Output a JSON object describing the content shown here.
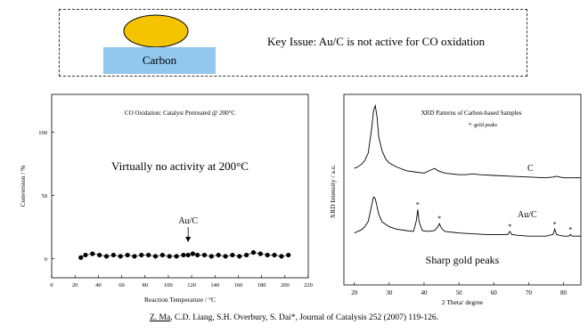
{
  "header_box": {
    "carbon_label": "Carbon",
    "key_issue": "Key Issue: Au/C is not active for CO oxidation",
    "gold_color": "#f5c400",
    "carbon_color": "#92c8ee"
  },
  "citation": {
    "author_underlined": "Z. Ma",
    "rest": ", C.D. Liang, S.H. Overbury, S. Dai*, Journal of Catalysis 252 (2007) 119-126."
  },
  "chart_data": [
    {
      "type": "scatter",
      "title": "CO Oxidation: Catalyst Pretreated @ 200°C",
      "xlabel": "Reaction Temperature / °C",
      "ylabel": "Conversion / %",
      "xlim": [
        0,
        220
      ],
      "ylim": [
        -15,
        130
      ],
      "xticks": [
        0,
        20,
        40,
        60,
        80,
        100,
        120,
        140,
        160,
        180,
        200,
        220
      ],
      "yticks": [
        0,
        50,
        100
      ],
      "annotation_main": "Virtually no activity at 200°C",
      "annotation_arrow": "Au/C",
      "arrow_x": 117,
      "series": [
        {
          "name": "Au/C",
          "x": [
            25,
            29,
            35,
            41,
            47,
            53,
            59,
            65,
            71,
            77,
            83,
            89,
            95,
            101,
            107,
            113,
            117,
            121,
            125,
            131,
            137,
            143,
            149,
            155,
            161,
            167,
            173,
            179,
            185,
            191,
            197,
            203
          ],
          "y": [
            1,
            3,
            4,
            3,
            2,
            3,
            2,
            3,
            2,
            3,
            3,
            2,
            3,
            2,
            2,
            3,
            3,
            4,
            3,
            3,
            2,
            3,
            2,
            3,
            2,
            3,
            5,
            4,
            3,
            3,
            2,
            3
          ]
        }
      ],
      "grid": false
    },
    {
      "type": "line",
      "title": "XRD Patterns of Carbon-based Samples",
      "subtitle": "*: gold peaks",
      "xlabel": "2 Theta/ degree",
      "ylabel": "XRD Intensity / a.u.",
      "xlim": [
        17,
        85
      ],
      "xticks": [
        20,
        30,
        40,
        50,
        60,
        70,
        80
      ],
      "annotation_bottom": "Sharp gold peaks",
      "series": [
        {
          "name": "C",
          "x": [
            20,
            21,
            22,
            23,
            24,
            25,
            25.5,
            26,
            26.5,
            27,
            28,
            29,
            30,
            32,
            35,
            38,
            40,
            42,
            43,
            44,
            46,
            48,
            50,
            52,
            54,
            56,
            60,
            65,
            70,
            75,
            77,
            78,
            79,
            80,
            85
          ],
          "y": [
            26,
            28,
            31,
            36,
            46,
            78,
            100,
            106,
            92,
            66,
            48,
            38,
            33,
            28,
            23,
            21,
            20,
            24,
            26,
            23,
            20,
            19,
            18,
            18,
            19,
            18,
            17,
            16,
            15,
            14,
            15,
            16,
            15,
            14,
            14
          ]
        },
        {
          "name": "Au/C",
          "x": [
            20,
            21,
            22,
            23,
            24,
            25,
            25.5,
            26,
            26.5,
            27,
            28,
            30,
            32,
            35,
            37,
            37.8,
            38.2,
            38.6,
            39.5,
            41,
            43,
            44,
            44.4,
            45,
            46,
            48,
            50,
            54,
            58,
            62,
            64,
            64.6,
            65.2,
            67,
            70,
            75,
            77,
            77.5,
            78,
            80,
            81.5,
            82,
            82.5,
            85
          ],
          "y": [
            14,
            16,
            18,
            22,
            29,
            50,
            60,
            58,
            48,
            38,
            28,
            22,
            19,
            17,
            16,
            30,
            44,
            28,
            17,
            16,
            17,
            22,
            26,
            20,
            16,
            15,
            14,
            13,
            12,
            12,
            12,
            16,
            12,
            11,
            10,
            10,
            12,
            19,
            12,
            10,
            10,
            12,
            10,
            10
          ]
        }
      ],
      "series_labels": [
        "C",
        "Au/C"
      ],
      "peak_stars": [
        "*",
        "*",
        "*",
        "*",
        "*"
      ],
      "peak_star_x": [
        38.2,
        44.4,
        64.6,
        77.5,
        82
      ]
    }
  ]
}
